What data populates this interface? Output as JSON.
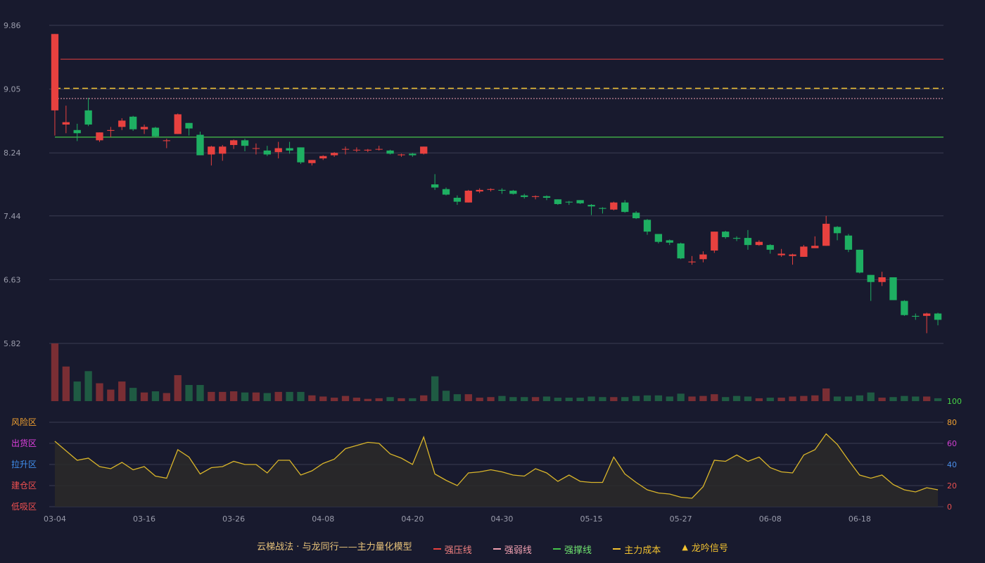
{
  "colors": {
    "background": "#181a2e",
    "up": "#e8413f",
    "down": "#1eaf62",
    "vol_up": "#7a2e34",
    "vol_down": "#1f5b43",
    "pressure": "#e8413f",
    "weak": "#f0a0b0",
    "support": "#45c34a",
    "cost": "#f2c230",
    "osc_line": "#d9b52a",
    "osc_fill": "#2c2a28",
    "grid": "#3a3c52"
  },
  "legend": {
    "title": "云梯战法 · 与龙同行——主力量化模型",
    "pressure": "强压线",
    "weak": "强弱线",
    "support": "强撑线",
    "cost": "主力成本",
    "signal": "龙吟信号"
  },
  "zones": [
    {
      "label": "风险区",
      "color": "#f0a030"
    },
    {
      "label": "出货区",
      "color": "#e040e0"
    },
    {
      "label": "拉升区",
      "color": "#4090f0"
    },
    {
      "label": "建仓区",
      "color": "#f05050"
    },
    {
      "label": "低吸区",
      "color": "#f05050"
    }
  ],
  "chart_data": [
    {
      "type": "candlestick",
      "price_ticks": [
        "9.86",
        "9.05",
        "8.24",
        "7.44",
        "6.63",
        "5.82"
      ],
      "price_range": [
        5.82,
        9.86
      ],
      "x_tick_labels": [
        "03-04",
        "03-16",
        "03-26",
        "04-08",
        "04-20",
        "04-30",
        "05-15",
        "05-27",
        "06-08",
        "06-18"
      ],
      "x_tick_index": [
        0,
        8,
        16,
        24,
        32,
        40,
        48,
        56,
        64,
        72
      ],
      "lines": {
        "pressure": 9.43,
        "cost": 9.06,
        "weak": 8.93,
        "support": 8.44
      },
      "candles": [
        [
          8.78,
          9.75,
          9.75,
          8.46
        ],
        [
          8.6,
          8.63,
          8.84,
          8.49
        ],
        [
          8.53,
          8.49,
          8.61,
          8.39
        ],
        [
          8.78,
          8.6,
          8.94,
          8.58
        ],
        [
          8.4,
          8.5,
          8.5,
          8.38
        ],
        [
          8.52,
          8.53,
          8.57,
          8.44
        ],
        [
          8.57,
          8.65,
          8.68,
          8.53
        ],
        [
          8.7,
          8.54,
          8.71,
          8.52
        ],
        [
          8.54,
          8.57,
          8.6,
          8.48
        ],
        [
          8.56,
          8.45,
          8.57,
          8.44
        ],
        [
          8.39,
          8.4,
          8.42,
          8.3
        ],
        [
          8.48,
          8.73,
          8.74,
          8.48
        ],
        [
          8.62,
          8.55,
          8.62,
          8.46
        ],
        [
          8.47,
          8.21,
          8.51,
          8.21
        ],
        [
          8.22,
          8.32,
          8.33,
          8.08
        ],
        [
          8.23,
          8.32,
          8.34,
          8.14
        ],
        [
          8.34,
          8.4,
          8.41,
          8.29
        ],
        [
          8.4,
          8.33,
          8.42,
          8.26
        ],
        [
          8.3,
          8.3,
          8.36,
          8.22
        ],
        [
          8.27,
          8.22,
          8.33,
          8.2
        ],
        [
          8.25,
          8.3,
          8.38,
          8.17
        ],
        [
          8.3,
          8.27,
          8.38,
          8.23
        ],
        [
          8.31,
          8.12,
          8.31,
          8.1
        ],
        [
          8.11,
          8.15,
          8.15,
          8.08
        ],
        [
          8.17,
          8.2,
          8.21,
          8.15
        ],
        [
          8.21,
          8.24,
          8.25,
          8.19
        ],
        [
          8.29,
          8.29,
          8.32,
          8.22
        ],
        [
          8.28,
          8.28,
          8.31,
          8.25
        ],
        [
          8.27,
          8.28,
          8.29,
          8.25
        ],
        [
          8.29,
          8.29,
          8.33,
          8.27
        ],
        [
          8.27,
          8.23,
          8.28,
          8.22
        ],
        [
          8.21,
          8.22,
          8.23,
          8.19
        ],
        [
          8.23,
          8.21,
          8.24,
          8.19
        ],
        [
          8.23,
          8.32,
          8.32,
          8.22
        ],
        [
          7.84,
          7.8,
          7.97,
          7.77
        ],
        [
          7.78,
          7.71,
          7.8,
          7.7
        ],
        [
          7.67,
          7.62,
          7.7,
          7.58
        ],
        [
          7.61,
          7.76,
          7.77,
          7.61
        ],
        [
          7.75,
          7.77,
          7.79,
          7.73
        ],
        [
          7.77,
          7.78,
          7.79,
          7.75
        ],
        [
          7.77,
          7.76,
          7.79,
          7.72
        ],
        [
          7.76,
          7.72,
          7.77,
          7.71
        ],
        [
          7.7,
          7.68,
          7.72,
          7.66
        ],
        [
          7.68,
          7.69,
          7.7,
          7.65
        ],
        [
          7.69,
          7.67,
          7.7,
          7.64
        ],
        [
          7.65,
          7.59,
          7.65,
          7.58
        ],
        [
          7.62,
          7.61,
          7.63,
          7.58
        ],
        [
          7.64,
          7.6,
          7.64,
          7.59
        ],
        [
          7.58,
          7.56,
          7.59,
          7.45
        ],
        [
          7.54,
          7.53,
          7.55,
          7.47
        ],
        [
          7.52,
          7.61,
          7.62,
          7.51
        ],
        [
          7.61,
          7.49,
          7.64,
          7.48
        ],
        [
          7.48,
          7.41,
          7.5,
          7.4
        ],
        [
          7.39,
          7.24,
          7.4,
          7.2
        ],
        [
          7.21,
          7.11,
          7.21,
          7.09
        ],
        [
          7.13,
          7.1,
          7.14,
          7.07
        ],
        [
          7.09,
          6.9,
          7.1,
          6.89
        ],
        [
          6.85,
          6.86,
          6.93,
          6.82
        ],
        [
          6.89,
          6.95,
          6.99,
          6.85
        ],
        [
          7.0,
          7.24,
          7.24,
          6.97
        ],
        [
          7.24,
          7.17,
          7.25,
          7.15
        ],
        [
          7.16,
          7.15,
          7.18,
          7.12
        ],
        [
          7.16,
          7.07,
          7.26,
          7.01
        ],
        [
          7.07,
          7.11,
          7.13,
          7.06
        ],
        [
          7.07,
          7.01,
          7.08,
          6.96
        ],
        [
          6.94,
          6.96,
          7.02,
          6.92
        ],
        [
          6.93,
          6.95,
          6.96,
          6.82
        ],
        [
          6.92,
          7.05,
          7.07,
          6.92
        ],
        [
          7.03,
          7.06,
          7.18,
          7.03
        ],
        [
          7.06,
          7.34,
          7.44,
          7.06
        ],
        [
          7.3,
          7.22,
          7.31,
          7.13
        ],
        [
          7.19,
          7.01,
          7.21,
          6.98
        ],
        [
          7.01,
          6.72,
          7.01,
          6.71
        ],
        [
          6.69,
          6.6,
          6.69,
          6.36
        ],
        [
          6.6,
          6.66,
          6.73,
          6.55
        ],
        [
          6.66,
          6.37,
          6.66,
          6.37
        ],
        [
          6.36,
          6.18,
          6.37,
          6.17
        ],
        [
          6.17,
          6.16,
          6.2,
          6.12
        ],
        [
          6.17,
          6.2,
          6.21,
          5.95
        ],
        [
          6.2,
          6.12,
          6.21,
          6.05
        ]
      ],
      "volume": [
        100,
        60,
        34,
        52,
        31,
        20,
        34,
        23,
        15,
        17,
        14,
        45,
        28,
        28,
        16,
        16,
        17,
        15,
        15,
        14,
        16,
        16,
        16,
        10,
        8,
        6,
        9,
        6,
        4,
        5,
        7,
        5,
        5,
        10,
        43,
        18,
        12,
        12,
        6,
        7,
        9,
        7,
        7,
        7,
        8,
        6,
        6,
        6,
        8,
        7,
        7,
        7,
        9,
        10,
        10,
        8,
        13,
        8,
        9,
        12,
        7,
        9,
        8,
        5,
        6,
        6,
        8,
        9,
        10,
        22,
        8,
        8,
        10,
        15,
        6,
        7,
        9,
        8,
        8,
        5
      ]
    },
    {
      "type": "area",
      "yticks": [
        0,
        20,
        40,
        60,
        80,
        100
      ],
      "ylim": [
        0,
        100
      ],
      "values": [
        62,
        53,
        44,
        46,
        38,
        36,
        42,
        35,
        38,
        29,
        27,
        54,
        47,
        31,
        37,
        38,
        43,
        40,
        40,
        32,
        44,
        44,
        30,
        34,
        41,
        45,
        55,
        58,
        61,
        60,
        50,
        46,
        40,
        66,
        31,
        25,
        20,
        32,
        33,
        35,
        33,
        30,
        29,
        36,
        32,
        24,
        30,
        24,
        23,
        23,
        47,
        31,
        23,
        16,
        13,
        12,
        9,
        8,
        19,
        44,
        43,
        49,
        43,
        47,
        37,
        33,
        32,
        49,
        54,
        69,
        59,
        44,
        30,
        27,
        30,
        21,
        16,
        14,
        18,
        16
      ]
    }
  ]
}
